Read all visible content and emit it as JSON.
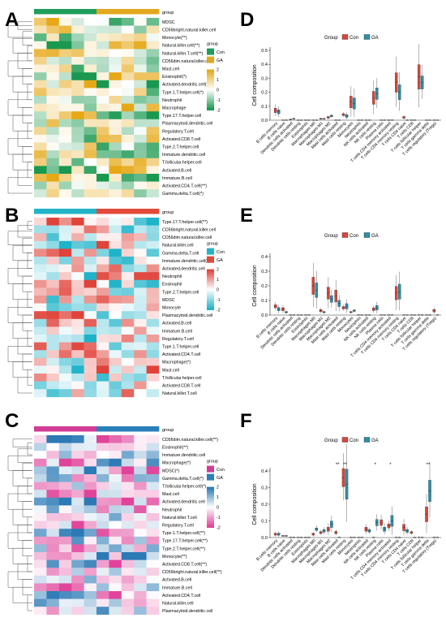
{
  "figure": {
    "panel_letters": [
      "A",
      "B",
      "C",
      "D",
      "E",
      "F"
    ]
  },
  "colors": {
    "con_box": "#D9453B",
    "ga_box": "#2C8FA8",
    "heatA": {
      "low": "#1A9850",
      "mid": "#FFFFFF",
      "high": "#E6A817",
      "con": "#1E9E5A",
      "ga": "#E3A81F"
    },
    "heatB": {
      "low": "#1FB3C9",
      "mid": "#FFFFFF",
      "high": "#E0433A",
      "con": "#21B4C7",
      "ga": "#E24A3B"
    },
    "heatC": {
      "low": "#E0439A",
      "mid": "#FFFFFF",
      "high": "#2B79B5",
      "con": "#D23C95",
      "ga": "#2A7FBA"
    }
  },
  "chart_data": [
    {
      "panel": "A",
      "type": "heatmap",
      "col_annotation_label": "group",
      "columns_per_group": 5,
      "legend": {
        "title": "group",
        "groups": [
          "Con",
          "GA"
        ],
        "scale_ticks": [
          "2",
          "1",
          "0",
          "-1",
          "-2"
        ]
      },
      "rows": [
        "MDSC",
        "CD56bright.natural.killer.cell",
        "Monocyte(**)",
        "Natural.killer.cell(**)",
        "Natural.killer.T.cell(**)",
        "CD56dim.natural.killer.cell",
        "Mast.cell",
        "Eosinophil(*)",
        "Activated.dendritic.cell(**)",
        "Type.1.T.helper.cell(*)",
        "Neutrophil",
        "Macrophage",
        "Type.17.T.helper.cell",
        "Plasmacytoid.dendritic.cell",
        "Regulatory.T.cell",
        "Activated.CD8.T.cell",
        "Type.2.T.helper.cell",
        "Immature.dendritic.cell",
        "T.follicular.helper.cell",
        "Activated.B.cell",
        "Immature.B.cell",
        "Activated.CD4.T.cell(**)",
        "Gamma.delta.T.cell(*)"
      ]
    },
    {
      "panel": "B",
      "type": "heatmap",
      "col_annotation_label": "group",
      "columns_per_group": 5,
      "legend": {
        "title": "group",
        "groups": [
          "Con",
          "GA"
        ],
        "scale_ticks": [
          "2",
          "1",
          "0",
          "-1",
          "-2"
        ]
      },
      "rows": [
        "Type.17.T.helper.cell(**)",
        "CD56bright.natural.killer.cell",
        "CD56dim.natural.killer.cell",
        "Natural.killer.cell",
        "Gamma.delta.T.cell",
        "Immature.dendritic.cell(*)",
        "Activated.dendritic.cell",
        "Neutrophil",
        "Eosinophil",
        "Type.2.T.helper.cell",
        "MDSC",
        "Monocyte",
        "Plasmacytoid.dendritic.cell",
        "Activated.B.cell",
        "Immature.B.cell",
        "Regulatory.T.cell",
        "Type.1.T.helper.cell",
        "Activated.CD4.T.cell",
        "Macrophage(*)",
        "Mast.cell",
        "T.follicular.helper.cell",
        "Activated.CD8.T.cell",
        "Natural.killer.T.cell"
      ]
    },
    {
      "panel": "C",
      "type": "heatmap",
      "col_annotation_label": "group",
      "columns_per_group": 5,
      "legend": {
        "title": "group",
        "groups": [
          "Con",
          "GA"
        ],
        "scale_ticks": [
          "2",
          "1",
          "0",
          "-1",
          "-2"
        ]
      },
      "rows": [
        "CD56dim.natural.killer.cell(**)",
        "Eosinophil(**)",
        "Immature.dendritic.cell",
        "Macrophage(*)",
        "MDSC(*)",
        "Gamma.delta.T.cell(*)",
        "T.follicular.helper.cell(*)",
        "Mast.cell",
        "Activated.dendritic.cell",
        "Neutrophil",
        "Natural.killer.T.cell",
        "Regulatory.T.cell",
        "Type.1.T.helper.cell(**)",
        "Type.17.T.helper.cell(**)",
        "Type.2.T.helper.cell(**)",
        "Monocyte(**)",
        "Activated.CD8.T.cell(**)",
        "CD56bright.natural.killer.cell(**)",
        "Activated.B.cell",
        "Immature.B.cell",
        "Activated.CD4.T.cell",
        "Natural.killer.cell",
        "Plasmacytoid.dendritic.cell"
      ]
    },
    {
      "panel": "D",
      "type": "box",
      "legend": {
        "title": "Group",
        "labels": [
          "Con",
          "GA"
        ]
      },
      "ylabel": "Cell composition",
      "ylim": [
        0,
        0.5
      ],
      "yticks": [
        "0.0",
        "0.1",
        "0.2",
        "0.3",
        "0.4",
        "0.5"
      ],
      "categories": [
        "B cells memory",
        "B cells naive",
        "Dendritic cells activated",
        "Dendritic cells resting",
        "Eosinophils",
        "Macrophages M0",
        "Macrophages M1",
        "Macrophages M2",
        "Mast cells activated",
        "Mast cells resting",
        "Monocytes",
        "Neutrophils",
        "NK cells activated",
        "NK cells resting",
        "Plasma cells",
        "T cells CD4 memory activated",
        "T cells CD4 memory resting",
        "T cells CD4 naive",
        "T cells CD8",
        "T cells follicular helper",
        "T cells gamma delta",
        "T cells regulatory (Tregs)"
      ],
      "series": [
        {
          "name": "Con",
          "median": [
            0.07,
            0.0,
            0.005,
            0.0,
            0.0,
            0.0,
            0.01,
            0.02,
            0.0,
            0.04,
            0.13,
            0.0,
            0.0,
            0.16,
            0.0,
            0.0,
            0.27,
            0.02,
            0.0,
            0.31,
            0.0,
            0.0
          ]
        },
        {
          "name": "GA",
          "median": [
            0.06,
            0.0,
            0.01,
            0.0,
            0.0,
            0.0,
            0.01,
            0.03,
            0.0,
            0.03,
            0.12,
            0.0,
            0.0,
            0.19,
            0.0,
            0.0,
            0.2,
            0.0,
            0.0,
            0.27,
            0.0,
            0.0
          ]
        }
      ]
    },
    {
      "panel": "E",
      "type": "box",
      "legend": {
        "title": "Group",
        "labels": [
          "Con",
          "GA"
        ]
      },
      "ylabel": "Cell composition",
      "ylim": [
        0,
        0.4
      ],
      "yticks": [
        "0.0",
        "0.1",
        "0.2",
        "0.3",
        "0.4"
      ],
      "categories": [
        "B cells memory",
        "B cells naive",
        "Dendritic cells activated",
        "Dendritic cells resting",
        "Eosinophils",
        "Macrophages M0",
        "Macrophages M1",
        "Macrophages M2",
        "Mast cells activated",
        "Mast cells resting",
        "Monocytes",
        "Neutrophils",
        "NK cells activated",
        "NK cells resting",
        "Plasma cells",
        "T cells CD4 memory activated",
        "T cells CD4 memory resting",
        "T cells CD4 naive",
        "T cells CD8",
        "T cells follicular helper",
        "T cells gamma delta",
        "T cells regulatory (Tregs)"
      ],
      "series": [
        {
          "name": "Con",
          "median": [
            0.06,
            0.04,
            0.0,
            0.0,
            0.0,
            0.2,
            0.03,
            0.15,
            0.13,
            0.05,
            0.02,
            0.0,
            0.0,
            0.04,
            0.0,
            0.0,
            0.15,
            0.0,
            0.0,
            0.0,
            0.0,
            0.03
          ]
        },
        {
          "name": "GA",
          "median": [
            0.04,
            0.02,
            0.0,
            0.0,
            0.0,
            0.17,
            0.02,
            0.11,
            0.08,
            0.06,
            0.03,
            0.0,
            0.0,
            0.05,
            0.0,
            0.0,
            0.16,
            0.0,
            0.0,
            0.0,
            0.0,
            0.0
          ]
        }
      ]
    },
    {
      "panel": "F",
      "type": "box",
      "legend": {
        "title": "Group",
        "labels": [
          "Con",
          "GA"
        ]
      },
      "ylabel": "Cell composition",
      "ylim": [
        0,
        0.4
      ],
      "yticks": [
        "0.0",
        "0.1",
        "0.2",
        "0.3",
        "0.4"
      ],
      "categories": [
        "B cells memory",
        "B cells naive",
        "Dendritic cells activated",
        "Dendritic cells resting",
        "Eosinophils",
        "Macrophages M0",
        "Macrophages M1",
        "Macrophages M2",
        "Mast cells activated",
        "Mast cells resting",
        "Monocytes",
        "Neutrophils",
        "NK cells activated",
        "NK cells resting",
        "Plasma cells",
        "T cells CD4 memory activated",
        "T cells CD4 memory resting",
        "T cells CD4 naive",
        "T cells CD8",
        "T cells follicular helper",
        "T cells gamma delta",
        "T cells regulatory (Tregs)"
      ],
      "significance": [
        {
          "category": "Mast cells activated",
          "label": "**"
        },
        {
          "category": "Mast cells resting",
          "label": "**"
        },
        {
          "category": "NK cells resting",
          "label": "*"
        },
        {
          "category": "T cells CD4 memory activated",
          "label": "*"
        },
        {
          "category": "T cells gamma delta",
          "label": "**"
        }
      ],
      "series": [
        {
          "name": "Con",
          "median": [
            0.02,
            0.01,
            0.0,
            0.0,
            0.0,
            0.02,
            0.03,
            0.05,
            0.03,
            0.36,
            0.0,
            0.0,
            0.05,
            0.0,
            0.09,
            0.07,
            0.0,
            0.06,
            0.03,
            0.0,
            0.14,
            0.0
          ]
        },
        {
          "name": "GA",
          "median": [
            0.02,
            0.01,
            0.0,
            0.0,
            0.0,
            0.05,
            0.04,
            0.08,
            0.0,
            0.32,
            0.0,
            0.0,
            0.04,
            0.09,
            0.05,
            0.1,
            0.0,
            0.04,
            0.0,
            0.0,
            0.28,
            0.0
          ]
        }
      ]
    }
  ]
}
